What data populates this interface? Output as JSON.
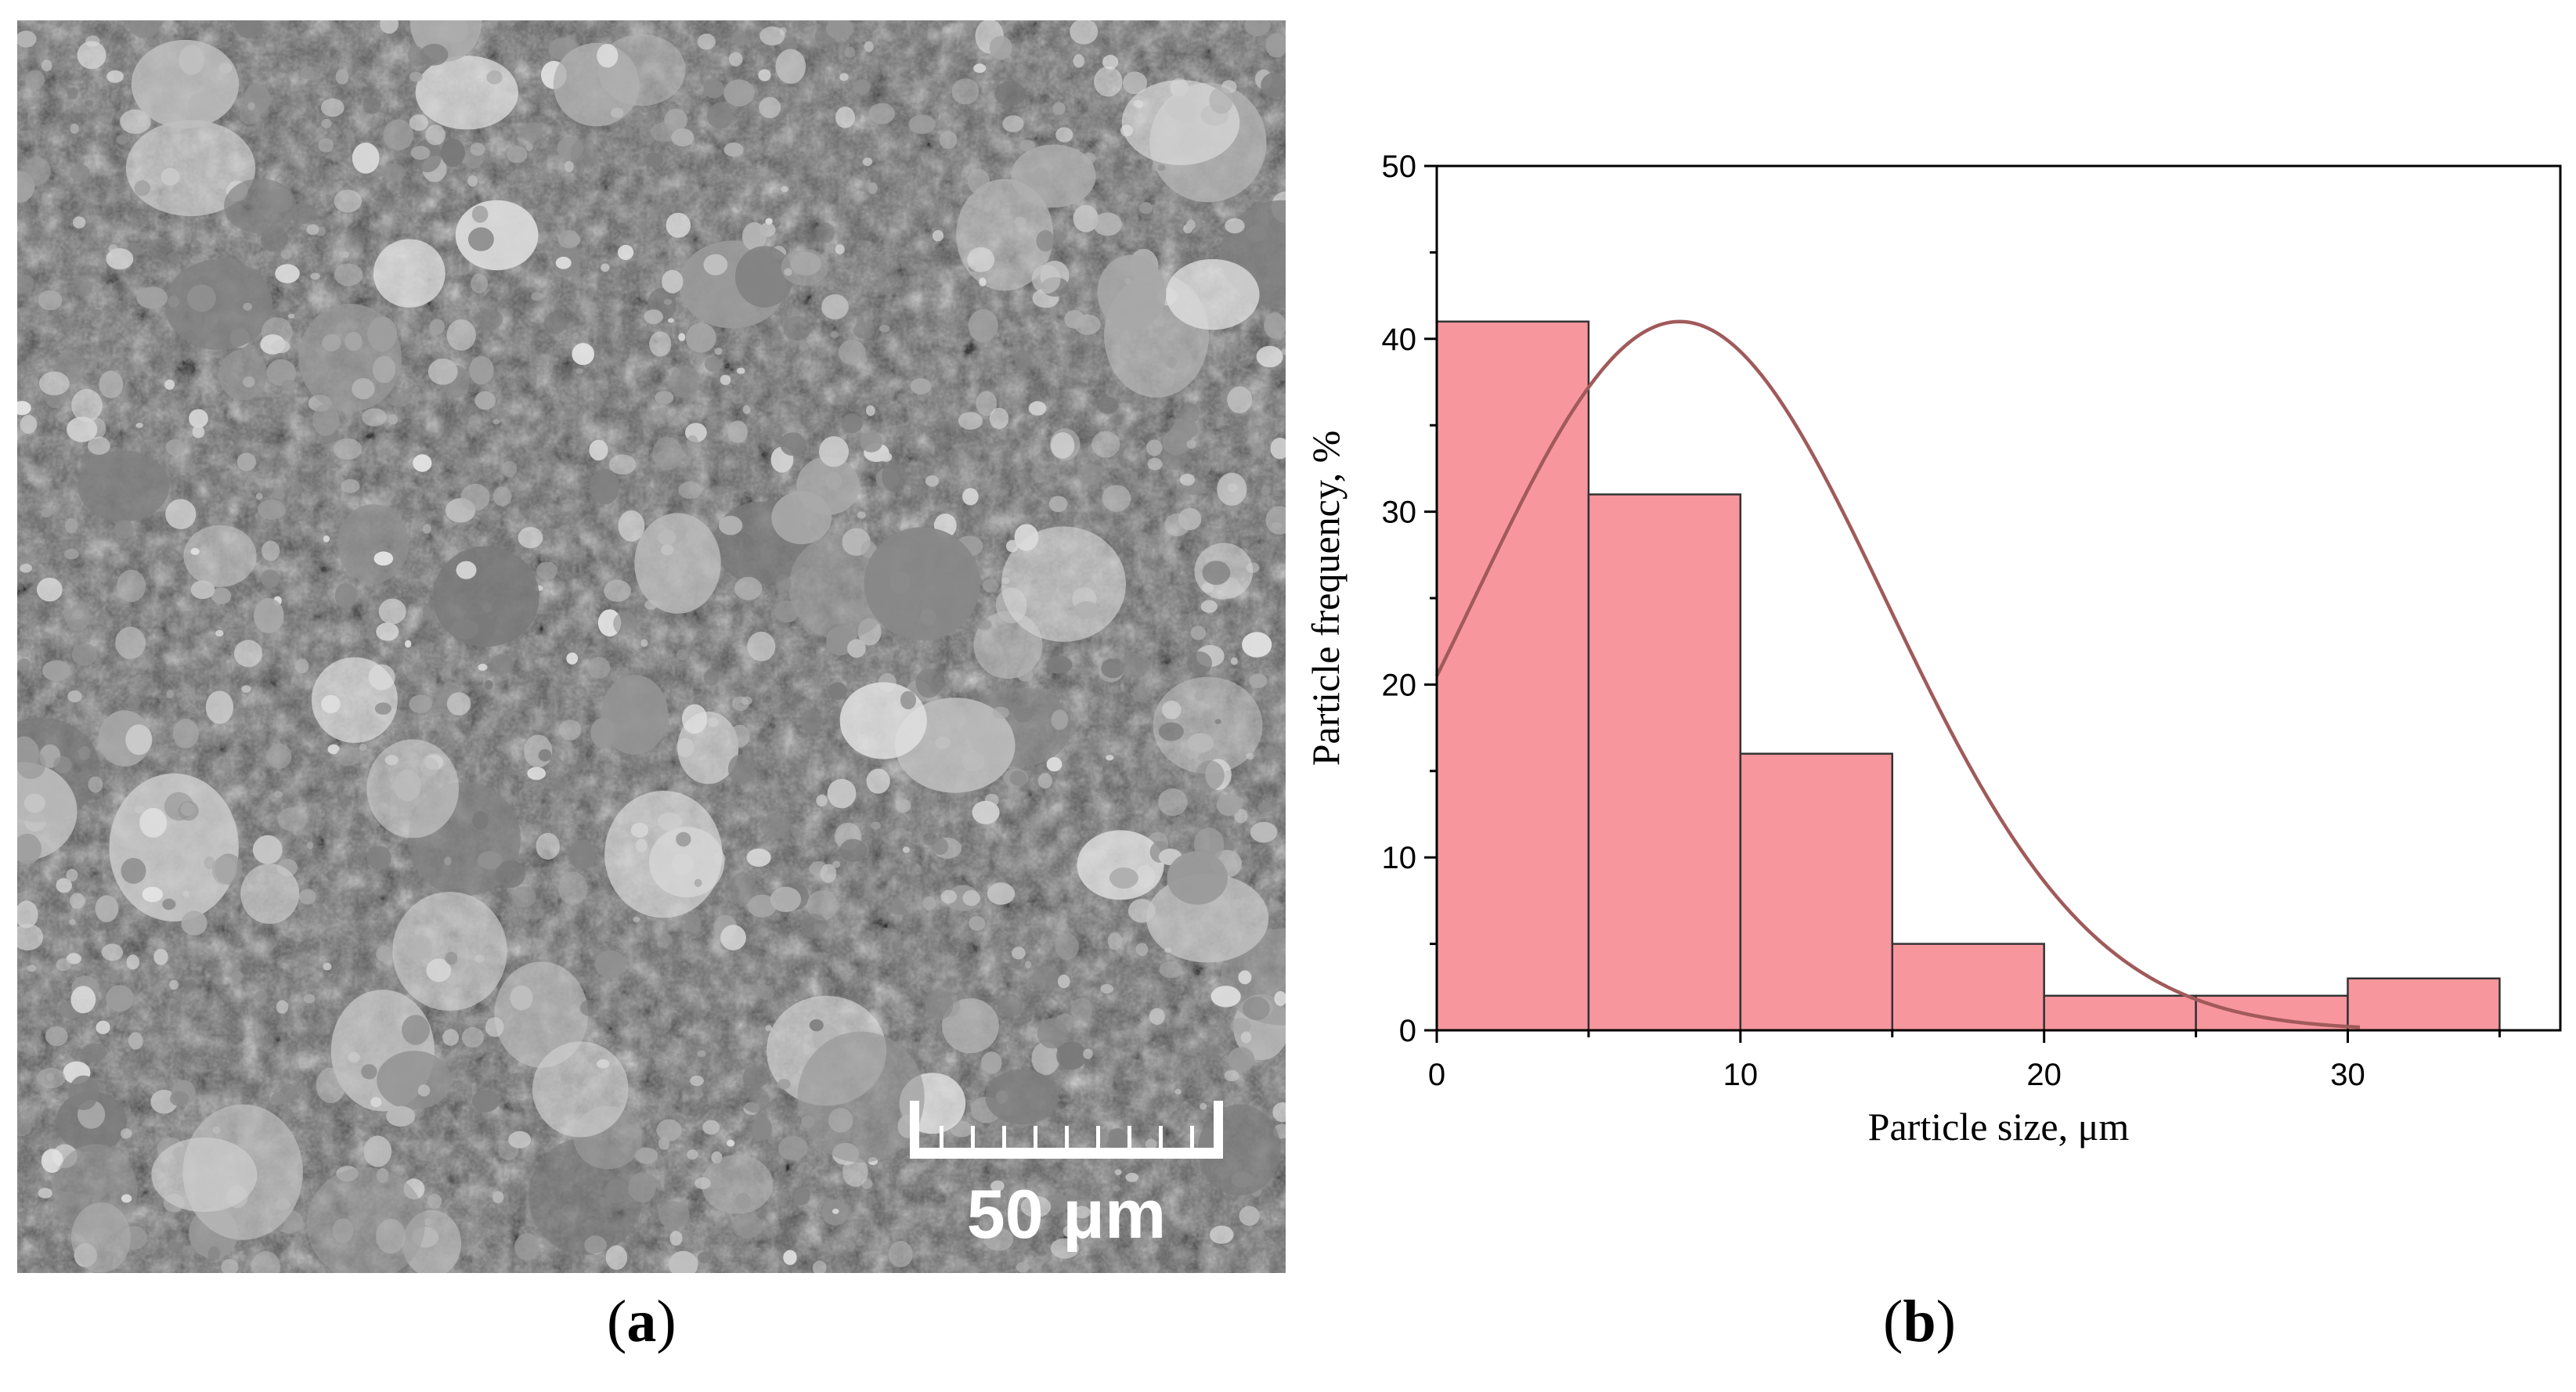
{
  "panel_a": {
    "scale_bar_label": "50 μm"
  },
  "panel_labels": {
    "a_open": "(",
    "a_letter": "a",
    "a_close": ")",
    "b_open": "(",
    "b_letter": "b",
    "b_close": ")"
  },
  "colors": {
    "bar_fill": "#F8969D",
    "bar_stroke": "#333333",
    "curve": "#A05A5A",
    "axis": "#000000"
  },
  "chart_data": {
    "type": "bar",
    "title": "",
    "xlabel": "Particle size, μm",
    "ylabel": "Particle frequency, %",
    "bins": [
      {
        "from": 0,
        "to": 5,
        "value": 41
      },
      {
        "from": 5,
        "to": 10,
        "value": 31
      },
      {
        "from": 10,
        "to": 15,
        "value": 16
      },
      {
        "from": 15,
        "to": 20,
        "value": 5
      },
      {
        "from": 20,
        "to": 25,
        "value": 2
      },
      {
        "from": 25,
        "to": 30,
        "value": 2
      },
      {
        "from": 30,
        "to": 35,
        "value": 3
      }
    ],
    "fit_curve": {
      "type": "normal",
      "peak_x": 8,
      "peak_y": 41,
      "y_at_0": 20.5
    },
    "xlim": [
      0,
      37
    ],
    "ylim": [
      0,
      50
    ],
    "x_ticks": [
      0,
      10,
      20,
      30
    ],
    "y_ticks": [
      0,
      10,
      20,
      30,
      40,
      50
    ],
    "grid": false,
    "legend": "none"
  }
}
